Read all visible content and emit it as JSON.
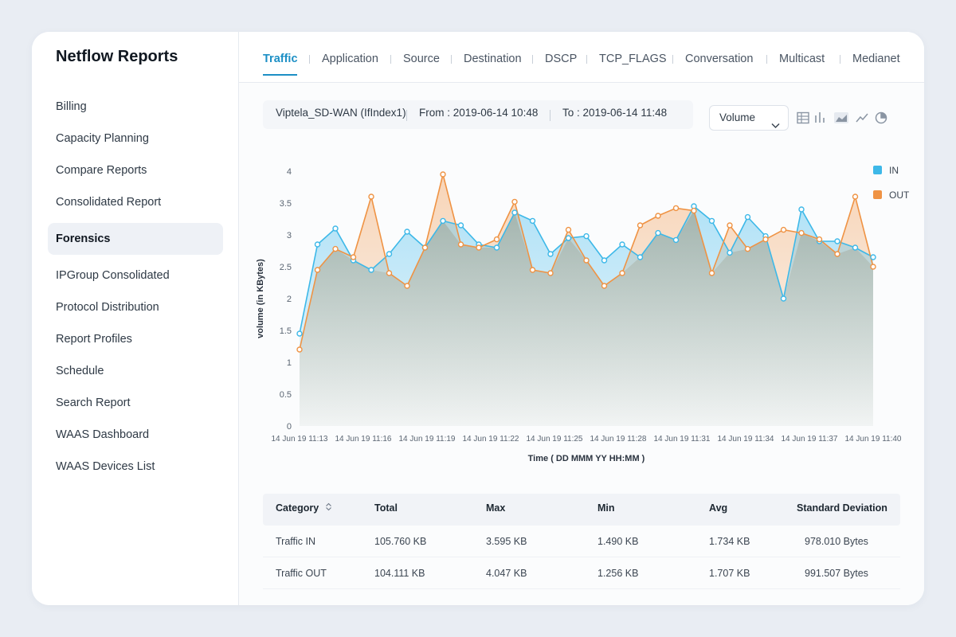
{
  "app": {
    "title": "Netflow Reports"
  },
  "sidebar": {
    "items": [
      {
        "label": "Billing",
        "active": false
      },
      {
        "label": "Capacity Planning",
        "active": false
      },
      {
        "label": "Compare Reports",
        "active": false
      },
      {
        "label": "Consolidated Report",
        "active": false
      },
      {
        "label": "Forensics",
        "active": true
      },
      {
        "label": "IPGroup Consolidated",
        "active": false
      },
      {
        "label": "Protocol Distribution",
        "active": false
      },
      {
        "label": "Report Profiles",
        "active": false
      },
      {
        "label": "Schedule",
        "active": false
      },
      {
        "label": "Search Report",
        "active": false
      },
      {
        "label": "WAAS Dashboard",
        "active": false
      },
      {
        "label": "WAAS Devices List",
        "active": false
      }
    ]
  },
  "tabs": [
    {
      "label": "Traffic",
      "active": true
    },
    {
      "label": "Application",
      "active": false
    },
    {
      "label": "Source",
      "active": false
    },
    {
      "label": "Destination",
      "active": false
    },
    {
      "label": "DSCP",
      "active": false
    },
    {
      "label": "TCP_FLAGS",
      "active": false
    },
    {
      "label": "Conversation",
      "active": false
    },
    {
      "label": "Multicast",
      "active": false
    },
    {
      "label": "Medianet",
      "active": false
    }
  ],
  "filter": {
    "interface": "Viptela_SD-WAN (IfIndex1)",
    "from": "From : 2019-06-14 10:48",
    "to": "To : 2019-06-14 11:48",
    "metric": "Volume"
  },
  "view_icons": [
    "table-icon",
    "bar-chart-icon",
    "area-chart-icon",
    "line-chart-icon",
    "pie-chart-icon"
  ],
  "colors": {
    "in": "#3db8e8",
    "out": "#ef9344",
    "accent": "#1c8fc5"
  },
  "chart_data": {
    "type": "area",
    "xlabel": "Time ( DD MMM YY HH:MM )",
    "ylabel": "volume (in KBytes)",
    "ylim": [
      0,
      4
    ],
    "yticks": [
      "0",
      "0.5",
      "1",
      "1.5",
      "2",
      "2.5",
      "3",
      "3.5",
      "4"
    ],
    "xtick_labels": [
      "14 Jun 19 11:13",
      "14 Jun 19 11:16",
      "14 Jun 19 11:19",
      "14 Jun 19 11:22",
      "14 Jun 19 11:25",
      "14 Jun 19 11:28",
      "14 Jun 19 11:31",
      "14 Jun 19 11:34",
      "14 Jun 19 11:37",
      "14 Jun 19 11:40"
    ],
    "legend_position": "top-right",
    "series": [
      {
        "name": "IN",
        "values": [
          1.45,
          2.85,
          3.1,
          2.6,
          2.45,
          2.7,
          3.05,
          2.8,
          3.22,
          3.15,
          2.85,
          2.8,
          3.35,
          3.22,
          2.7,
          2.95,
          2.98,
          2.6,
          2.85,
          2.65,
          3.03,
          2.92,
          3.45,
          3.22,
          2.72,
          3.28,
          2.98,
          2.0,
          3.4,
          2.9,
          2.9,
          2.8,
          2.65
        ]
      },
      {
        "name": "OUT",
        "values": [
          1.2,
          2.45,
          2.78,
          2.65,
          3.6,
          2.4,
          2.2,
          2.8,
          3.95,
          2.85,
          2.8,
          2.93,
          3.52,
          2.45,
          2.4,
          3.08,
          2.6,
          2.2,
          2.4,
          3.15,
          3.3,
          3.42,
          3.38,
          2.4,
          3.15,
          2.78,
          2.93,
          3.08,
          3.03,
          2.93,
          2.7,
          3.6,
          2.5
        ]
      }
    ]
  },
  "table": {
    "headers": [
      "Category",
      "Total",
      "Max",
      "Min",
      "Avg",
      "Standard Deviation"
    ],
    "rows": [
      [
        "Traffic IN",
        "105.760 KB",
        "3.595 KB",
        "1.490 KB",
        "1.734 KB",
        "978.010 Bytes"
      ],
      [
        "Traffic OUT",
        "104.111 KB",
        "4.047 KB",
        "1.256 KB",
        "1.707 KB",
        "991.507 Bytes"
      ]
    ]
  }
}
